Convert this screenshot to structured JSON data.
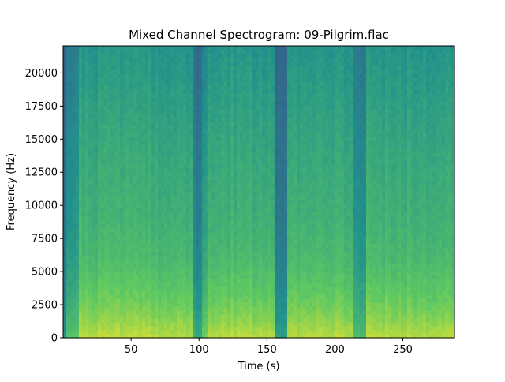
{
  "chart_data": {
    "type": "heatmap",
    "title": "Mixed Channel Spectrogram: 09-Pilgrim.flac",
    "xlabel": "Time (s)",
    "ylabel": "Frequency (Hz)",
    "xlim": [
      0,
      288
    ],
    "ylim": [
      0,
      22050
    ],
    "xticks": [
      50,
      100,
      150,
      200,
      250
    ],
    "yticks": [
      0,
      2500,
      5000,
      7500,
      10000,
      12500,
      15000,
      17500,
      20000
    ],
    "colormap": "viridis",
    "grid": false,
    "time_bands": [
      {
        "t": [
          0,
          3
        ],
        "level": 0.34
      },
      {
        "t": [
          3,
          12
        ],
        "level": 0.47
      },
      {
        "t": [
          12,
          96
        ],
        "level": 0.58
      },
      {
        "t": [
          96,
          102
        ],
        "level": 0.4
      },
      {
        "t": [
          102,
          108
        ],
        "level": 0.5
      },
      {
        "t": [
          108,
          155
        ],
        "level": 0.58
      },
      {
        "t": [
          155,
          165
        ],
        "level": 0.36
      },
      {
        "t": [
          165,
          213
        ],
        "level": 0.58
      },
      {
        "t": [
          213,
          222
        ],
        "level": 0.44
      },
      {
        "t": [
          222,
          288
        ],
        "level": 0.58
      }
    ],
    "freq_profile": [
      {
        "f": 0,
        "boost": 0.32
      },
      {
        "f": 1500,
        "boost": 0.24
      },
      {
        "f": 3000,
        "boost": 0.18
      },
      {
        "f": 6000,
        "boost": 0.1
      },
      {
        "f": 9000,
        "boost": 0.06
      },
      {
        "f": 14000,
        "boost": 0.02
      },
      {
        "f": 20000,
        "boost": -0.04
      },
      {
        "f": 22050,
        "boost": -0.06
      }
    ]
  }
}
